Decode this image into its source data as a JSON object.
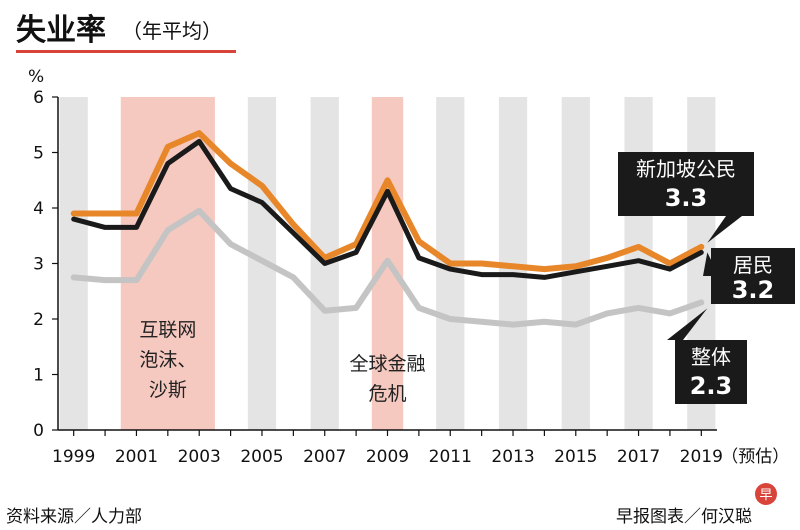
{
  "header": {
    "title": "失业率",
    "subtitle": "（年平均）"
  },
  "chart_data": {
    "type": "line",
    "ylabel": "%",
    "ylim": [
      0,
      6
    ],
    "y_ticks": [
      "0",
      "1",
      "2",
      "3",
      "4",
      "5",
      "6"
    ],
    "x_tick_labels": [
      "1999",
      "2001",
      "2003",
      "2005",
      "2007",
      "2009",
      "2011",
      "2013",
      "2015",
      "2017",
      "2019"
    ],
    "x_suffix": "（预估）",
    "x": [
      1999,
      2000,
      2001,
      2002,
      2003,
      2004,
      2005,
      2006,
      2007,
      2008,
      2009,
      2010,
      2011,
      2012,
      2013,
      2014,
      2015,
      2016,
      2017,
      2018,
      2019
    ],
    "series": [
      {
        "name": "新加坡公民",
        "color": "#e8872a",
        "values": [
          3.9,
          3.9,
          3.9,
          5.1,
          5.35,
          4.8,
          4.4,
          3.7,
          3.1,
          3.35,
          4.5,
          3.4,
          3.0,
          3.0,
          2.95,
          2.9,
          2.95,
          3.1,
          3.3,
          3.0,
          3.3
        ]
      },
      {
        "name": "居民",
        "color": "#1a1a1a",
        "values": [
          3.8,
          3.65,
          3.65,
          4.8,
          5.2,
          4.35,
          4.1,
          3.55,
          3.0,
          3.2,
          4.3,
          3.1,
          2.9,
          2.8,
          2.8,
          2.75,
          2.85,
          2.95,
          3.05,
          2.9,
          3.2
        ]
      },
      {
        "name": "整体",
        "color": "#c4c4c4",
        "values": [
          2.75,
          2.7,
          2.7,
          3.6,
          3.95,
          3.35,
          3.05,
          2.75,
          2.15,
          2.2,
          3.05,
          2.2,
          2.0,
          1.95,
          1.9,
          1.95,
          1.9,
          2.1,
          2.2,
          2.1,
          2.3
        ]
      }
    ],
    "bands": [
      {
        "from": 2000.5,
        "to": 2003.5,
        "label_lines": [
          "互联网",
          "泡沫、",
          "沙斯"
        ],
        "color": "#f6c9c0"
      },
      {
        "from": 2008.5,
        "to": 2009.5,
        "label_lines": [
          "全球金融",
          "危机"
        ],
        "color": "#f6c9c0"
      }
    ],
    "callouts": [
      {
        "name": "新加坡公民",
        "value": "3.3"
      },
      {
        "name": "居民",
        "value": "3.2"
      },
      {
        "name": "整体",
        "value": "2.3"
      }
    ],
    "grid": false
  },
  "footer": {
    "source": "资料来源／人力部",
    "credit": "早报图表／何汉聪",
    "logo_char": "早"
  },
  "colors": {
    "accent_red": "#d9443a",
    "band_grey": "#e4e4e4",
    "band_pink": "#f6c9c0"
  }
}
